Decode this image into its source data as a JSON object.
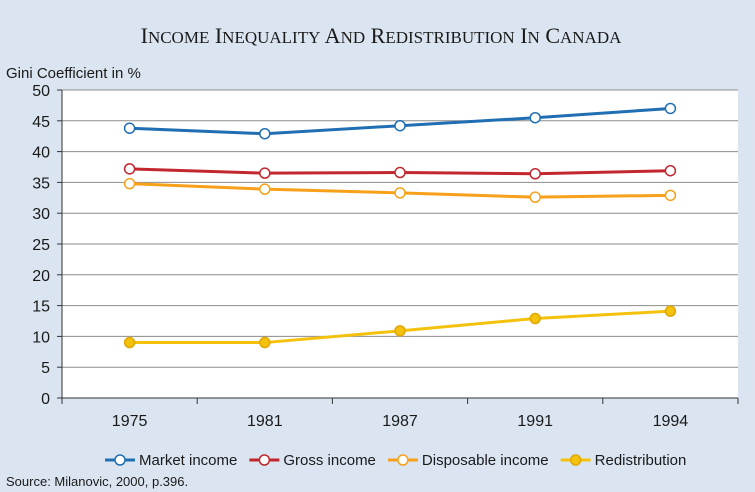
{
  "chart_data": {
    "type": "line",
    "title": "Income Inequality and Redistribution in Canada",
    "ylabel": "Gini Coefficient in %",
    "xlabel": "",
    "categories": [
      "1975",
      "1981",
      "1987",
      "1991",
      "1994"
    ],
    "ylim": [
      0,
      50
    ],
    "yticks": [
      0,
      5,
      10,
      15,
      20,
      25,
      30,
      35,
      40,
      45,
      50
    ],
    "grid": true,
    "legend_position": "bottom",
    "series": [
      {
        "name": "Market income",
        "values": [
          43.8,
          42.9,
          44.2,
          45.5,
          47.0
        ],
        "color": "#1f6fb2",
        "marker": "open-circle"
      },
      {
        "name": "Gross income",
        "values": [
          37.2,
          36.5,
          36.6,
          36.4,
          36.9
        ],
        "color": "#c1272d",
        "marker": "open-circle"
      },
      {
        "name": "Disposable income",
        "values": [
          34.8,
          33.9,
          33.3,
          32.6,
          32.9
        ],
        "color": "#f7a11a",
        "marker": "open-circle"
      },
      {
        "name": "Redistribution",
        "values": [
          9.0,
          9.0,
          10.9,
          12.9,
          14.1
        ],
        "color": "#f4c20d",
        "marker": "filled-circle"
      }
    ],
    "source": "Source: Milanovic, 2000, p.396."
  }
}
